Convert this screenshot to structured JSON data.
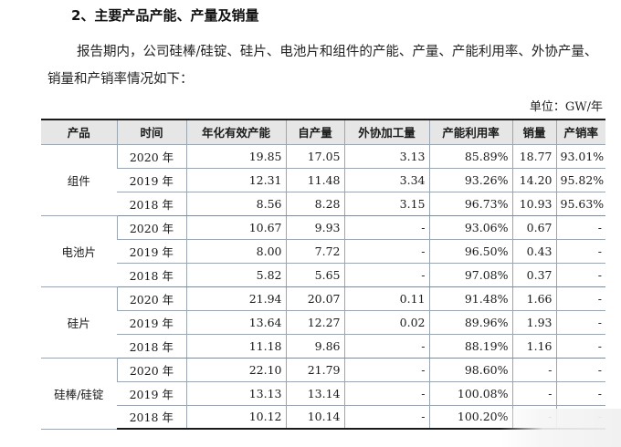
{
  "heading": "2、主要产品产能、产量及销量",
  "paragraph": "报告期内，公司硅棒/硅锭、硅片、电池片和组件的产能、产量、产能利用率、外协产量、销量和产销率情况如下：",
  "unit": "单位：GW/年",
  "table": {
    "headers": [
      "产品",
      "时间",
      "年化有效产能",
      "自产量",
      "外协加工量",
      "产能利用率",
      "销量",
      "产销率"
    ],
    "groups": [
      {
        "product": "组件",
        "rows": [
          [
            "2020 年",
            "19.85",
            "17.05",
            "3.13",
            "85.89%",
            "18.77",
            "93.01%"
          ],
          [
            "2019 年",
            "12.31",
            "11.48",
            "3.34",
            "93.26%",
            "14.20",
            "95.82%"
          ],
          [
            "2018 年",
            "8.56",
            "8.28",
            "3.15",
            "96.73%",
            "10.93",
            "95.63%"
          ]
        ]
      },
      {
        "product": "电池片",
        "rows": [
          [
            "2020 年",
            "10.67",
            "9.93",
            "-",
            "93.06%",
            "0.67",
            "-"
          ],
          [
            "2019 年",
            "8.00",
            "7.72",
            "-",
            "96.50%",
            "0.43",
            "-"
          ],
          [
            "2018 年",
            "5.82",
            "5.65",
            "-",
            "97.08%",
            "0.37",
            "-"
          ]
        ]
      },
      {
        "product": "硅片",
        "rows": [
          [
            "2020 年",
            "21.94",
            "20.07",
            "0.11",
            "91.48%",
            "1.66",
            "-"
          ],
          [
            "2019 年",
            "13.64",
            "12.27",
            "0.02",
            "89.96%",
            "1.93",
            "-"
          ],
          [
            "2018 年",
            "11.18",
            "9.86",
            "-",
            "88.19%",
            "1.16",
            "-"
          ]
        ]
      },
      {
        "product": "硅棒/硅锭",
        "rows": [
          [
            "2020 年",
            "22.10",
            "21.79",
            "-",
            "98.60%",
            "-",
            "-"
          ],
          [
            "2019 年",
            "13.13",
            "13.14",
            "-",
            "100.08%",
            "-",
            "-"
          ],
          [
            "2018 年",
            "10.12",
            "10.14",
            "-",
            "100.20%",
            "-",
            "-"
          ]
        ]
      }
    ]
  }
}
